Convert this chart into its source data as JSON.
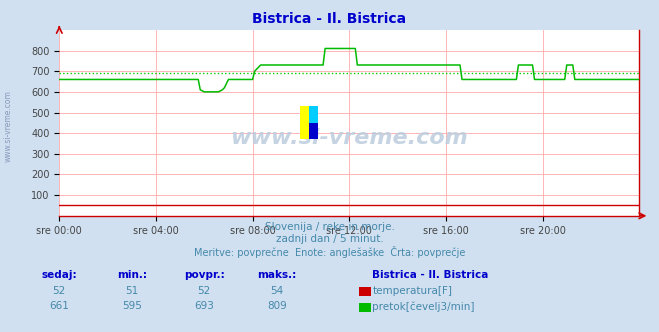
{
  "title": "Bistrica - Il. Bistrica",
  "title_color": "#0000cc",
  "bg_color": "#d0e0f0",
  "plot_bg_color": "#ffffff",
  "grid_color": "#ffaaaa",
  "xlabel_ticks": [
    "sre 00:00",
    "sre 04:00",
    "sre 08:00",
    "sre 12:00",
    "sre 16:00",
    "sre 20:00"
  ],
  "ylabel_values": [
    100,
    200,
    300,
    400,
    500,
    600,
    700,
    800
  ],
  "ymin": 0,
  "ymax": 900,
  "xmin": 0,
  "xmax": 288,
  "avg_line_color": "#00cc00",
  "avg_line_value": 693,
  "temp_line_color": "#cc0000",
  "watermark_text": "www.si-vreme.com",
  "subtitle1": "Slovenija / reke in morje.",
  "subtitle2": "zadnji dan / 5 minut.",
  "subtitle3": "Meritve: povprečne  Enote: anglešaške  Črta: povprečje",
  "subtitle_color": "#4488aa",
  "table_header_color": "#0000cc",
  "table_headers": [
    "sedaj:",
    "min.:",
    "povpr.:",
    "maks.:"
  ],
  "table_row1": [
    "52",
    "51",
    "52",
    "54"
  ],
  "table_row2": [
    "661",
    "595",
    "693",
    "809"
  ],
  "legend_title": "Bistrica - Il. Bistrica",
  "legend_temp": "temperatura[F]",
  "legend_flow": "pretok[čevelj3/min]",
  "temp_color": "#cc0000",
  "flow_color": "#00bb00",
  "tick_label_color": "#444444",
  "left_label_color": "#8899bb",
  "flow_data": [
    660,
    660,
    660,
    660,
    660,
    660,
    660,
    660,
    660,
    660,
    660,
    660,
    660,
    660,
    660,
    660,
    660,
    660,
    660,
    660,
    660,
    660,
    660,
    660,
    660,
    660,
    660,
    660,
    660,
    660,
    660,
    660,
    660,
    660,
    660,
    660,
    660,
    660,
    660,
    660,
    660,
    660,
    660,
    660,
    660,
    660,
    660,
    660,
    660,
    660,
    660,
    660,
    660,
    660,
    660,
    660,
    660,
    660,
    660,
    660,
    660,
    660,
    660,
    660,
    660,
    660,
    660,
    660,
    660,
    660,
    610,
    605,
    600,
    600,
    600,
    600,
    600,
    600,
    600,
    600,
    605,
    610,
    620,
    640,
    660,
    660,
    660,
    660,
    660,
    660,
    660,
    660,
    660,
    660,
    660,
    660,
    660,
    700,
    710,
    720,
    730,
    730,
    730,
    730,
    730,
    730,
    730,
    730,
    730,
    730,
    730,
    730,
    730,
    730,
    730,
    730,
    730,
    730,
    730,
    730,
    730,
    730,
    730,
    730,
    730,
    730,
    730,
    730,
    730,
    730,
    730,
    730,
    810,
    810,
    810,
    810,
    810,
    810,
    810,
    810,
    810,
    810,
    810,
    810,
    810,
    810,
    810,
    810,
    730,
    730,
    730,
    730,
    730,
    730,
    730,
    730,
    730,
    730,
    730,
    730,
    730,
    730,
    730,
    730,
    730,
    730,
    730,
    730,
    730,
    730,
    730,
    730,
    730,
    730,
    730,
    730,
    730,
    730,
    730,
    730,
    730,
    730,
    730,
    730,
    730,
    730,
    730,
    730,
    730,
    730,
    730,
    730,
    730,
    730,
    730,
    730,
    730,
    730,
    730,
    730,
    660,
    660,
    660,
    660,
    660,
    660,
    660,
    660,
    660,
    660,
    660,
    660,
    660,
    660,
    660,
    660,
    660,
    660,
    660,
    660,
    660,
    660,
    660,
    660,
    660,
    660,
    660,
    660,
    730,
    730,
    730,
    730,
    730,
    730,
    730,
    730,
    660,
    660,
    660,
    660,
    660,
    660,
    660,
    660,
    660,
    660,
    660,
    660,
    660,
    660,
    660,
    660,
    730,
    730,
    730,
    730,
    660,
    660,
    660,
    660,
    660,
    660,
    660,
    660,
    660,
    660,
    660,
    660,
    660,
    660,
    660,
    660,
    660,
    660,
    660,
    660,
    660,
    660,
    660,
    660,
    660,
    660,
    660,
    660,
    660,
    660,
    660,
    660,
    660
  ],
  "temp_data": [
    52,
    52,
    52,
    52,
    52,
    52,
    52,
    52,
    52,
    52,
    52,
    52,
    52,
    52,
    52,
    52,
    52,
    52,
    52,
    52,
    52,
    52,
    52,
    52,
    52,
    52,
    52,
    52,
    52,
    52,
    52,
    52,
    52,
    52,
    52,
    52,
    52,
    52,
    52,
    52,
    52,
    52,
    52,
    52,
    52,
    52,
    52,
    52,
    52,
    52,
    52,
    52,
    52,
    52,
    52,
    52,
    52,
    52,
    52,
    52,
    52,
    52,
    52,
    52,
    52,
    52,
    52,
    52,
    52,
    52,
    52,
    52,
    52,
    52,
    52,
    52,
    52,
    52,
    52,
    52,
    52,
    52,
    52,
    52,
    52,
    52,
    52,
    52,
    52,
    52,
    52,
    52,
    52,
    52,
    52,
    52,
    52,
    52,
    52,
    52,
    52,
    52,
    52,
    52,
    52,
    52,
    52,
    52,
    52,
    52,
    52,
    52,
    52,
    52,
    52,
    52,
    52,
    52,
    52,
    52,
    52,
    52,
    52,
    52,
    52,
    52,
    52,
    52,
    52,
    52,
    52,
    52,
    52,
    52,
    52,
    52,
    52,
    52,
    52,
    52,
    52,
    52,
    52,
    52,
    52,
    52,
    52,
    52,
    52,
    52,
    52,
    52,
    52,
    52,
    52,
    52,
    52,
    52,
    52,
    52,
    52,
    52,
    52,
    52,
    52,
    52,
    52,
    52,
    52,
    52,
    52,
    52,
    52,
    52,
    52,
    52,
    52,
    52,
    52,
    52,
    52,
    52,
    52,
    52,
    52,
    52,
    52,
    52,
    52,
    52,
    52,
    52,
    52,
    52,
    52,
    52,
    52,
    52,
    52,
    52,
    52,
    52,
    52,
    52,
    52,
    52,
    52,
    52,
    52,
    52,
    52,
    52,
    52,
    52,
    52,
    52,
    52,
    52,
    52,
    52,
    52,
    52,
    52,
    52,
    52,
    52,
    52,
    52,
    52,
    52,
    52,
    52,
    52,
    52,
    52,
    52,
    52,
    52,
    52,
    52,
    52,
    52,
    52,
    52,
    52,
    52,
    52,
    52,
    52,
    52,
    52,
    52,
    52,
    52,
    52,
    52,
    52,
    52,
    52,
    52,
    52,
    52,
    52,
    52,
    52,
    52,
    52,
    52,
    52,
    52,
    52,
    52,
    52,
    52,
    52,
    52,
    52,
    52,
    52,
    52,
    52,
    52,
    52,
    52,
    52,
    52,
    52,
    52,
    52
  ]
}
